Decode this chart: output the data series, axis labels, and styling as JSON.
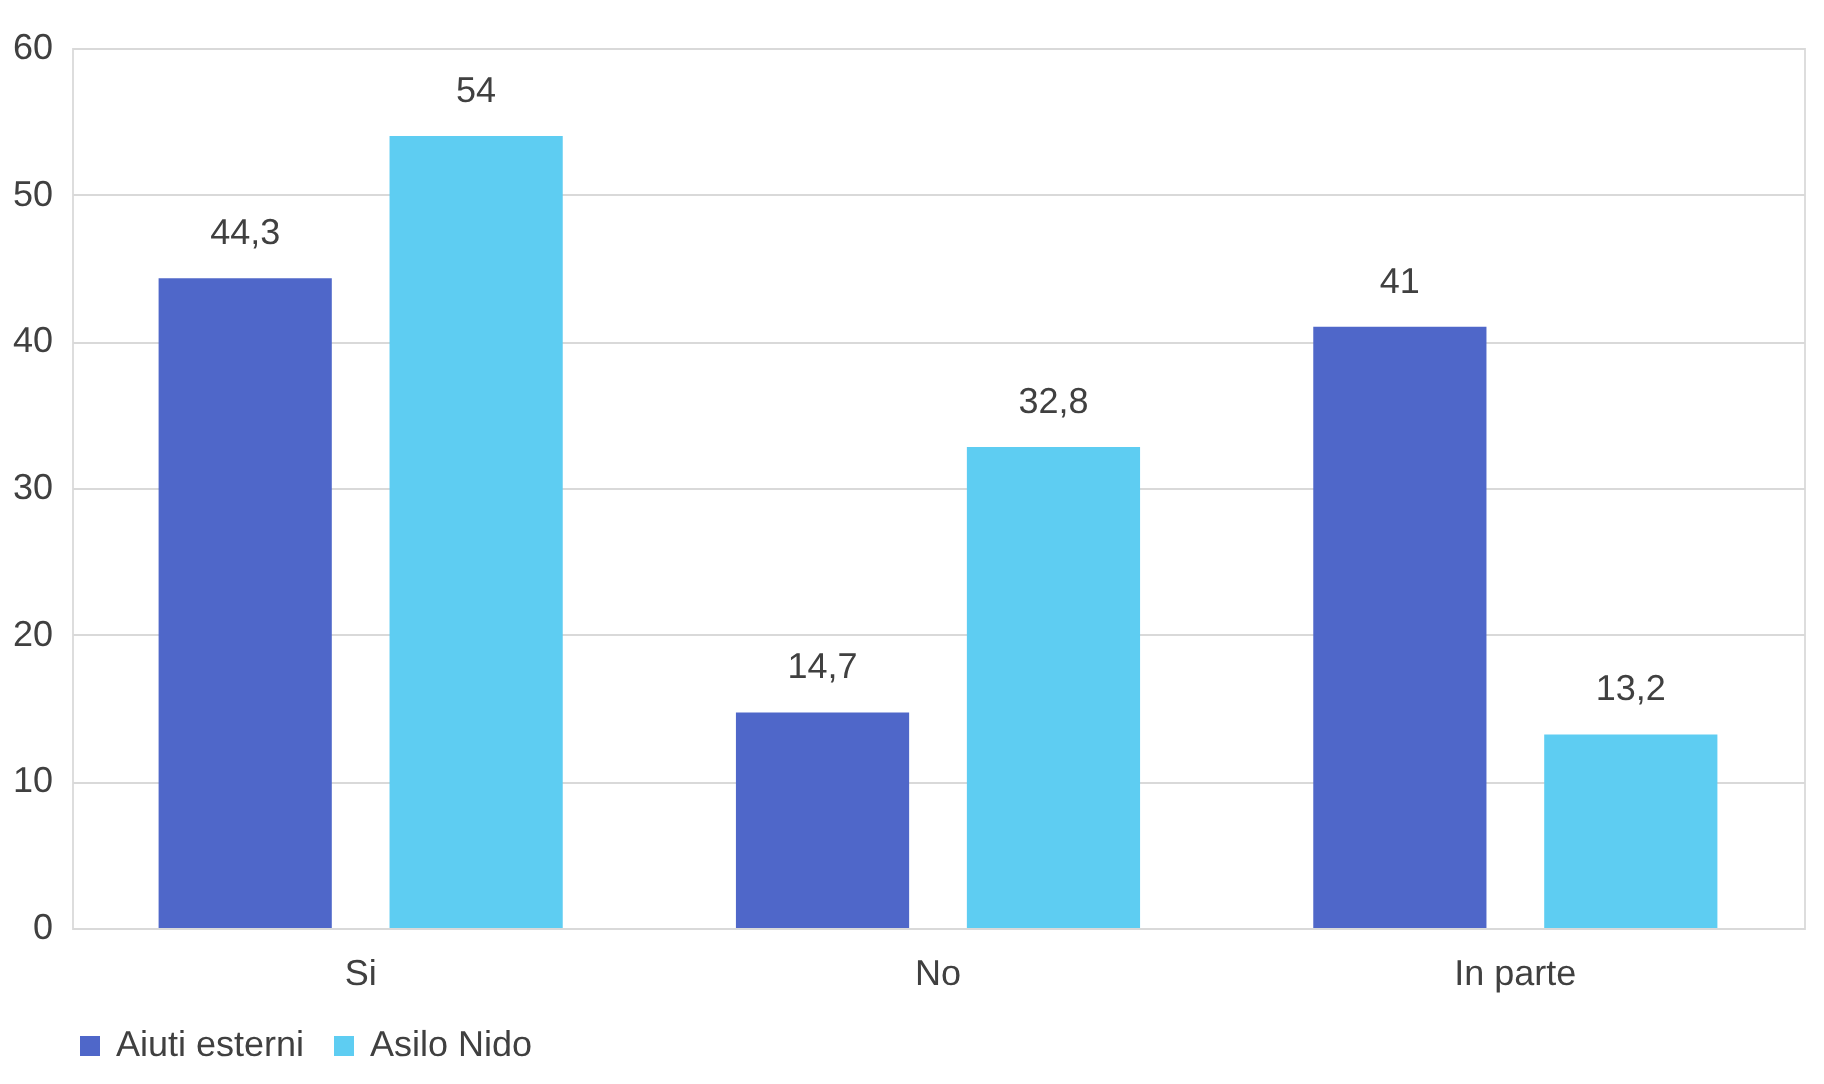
{
  "chart_data": {
    "type": "bar",
    "categories": [
      "Si",
      "No",
      "In parte"
    ],
    "series": [
      {
        "name": "Aiuti esterni",
        "color": "#4f67c9",
        "values": [
          44.3,
          14.7,
          41
        ],
        "value_labels": [
          "44,3",
          "14,7",
          "41"
        ]
      },
      {
        "name": "Asilo Nido",
        "color": "#5ecdf2",
        "values": [
          54,
          32.8,
          13.2
        ],
        "value_labels": [
          "54",
          "32,8",
          "13,2"
        ]
      }
    ],
    "ylim": [
      0,
      60
    ],
    "yticks": [
      0,
      10,
      20,
      30,
      40,
      50,
      60
    ],
    "grid": "y",
    "legend": "bottom"
  }
}
